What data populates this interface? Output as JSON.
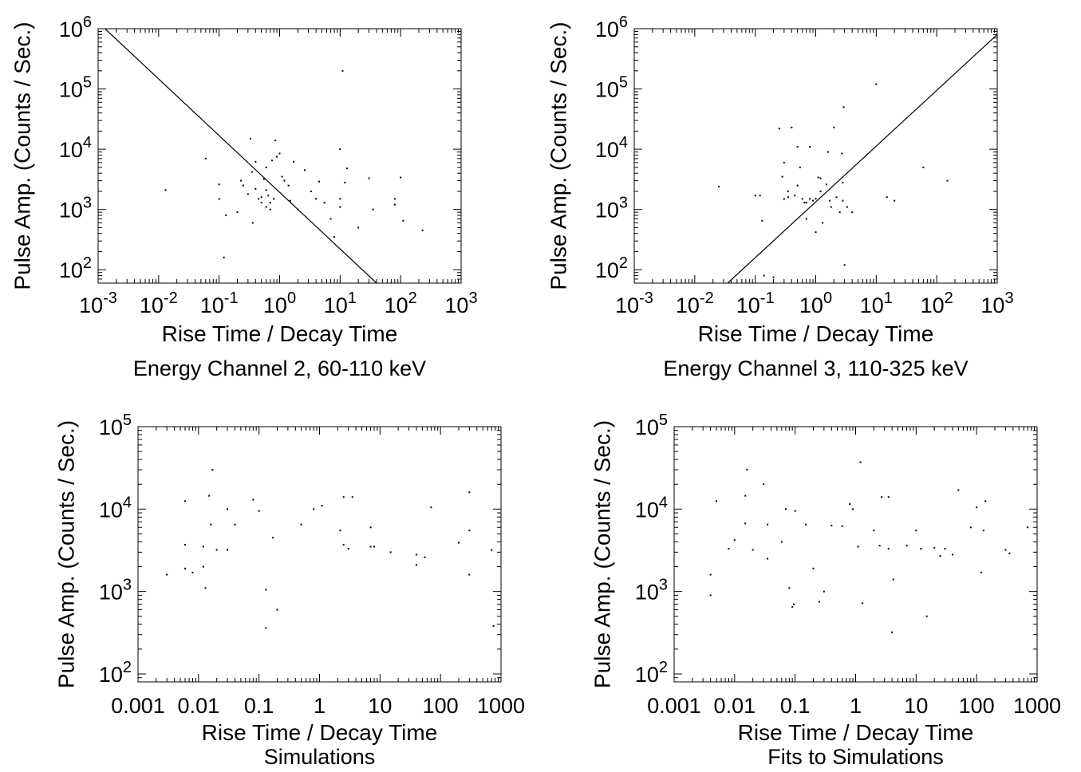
{
  "chart_data": [
    {
      "type": "scatter",
      "title": "Energy Channel 2, 60-110 keV",
      "xlabel": "Rise Time / Decay Time",
      "ylabel": "Pulse Amp. (Counts / Sec.)",
      "xscale": "log",
      "yscale": "log",
      "xlim": [
        0.001,
        1000
      ],
      "ylim": [
        60,
        1000000
      ],
      "tick_style": "power",
      "x_ticks": [
        {
          "v": 0.001,
          "b": "10",
          "e": "-3"
        },
        {
          "v": 0.01,
          "b": "10",
          "e": "-2"
        },
        {
          "v": 0.1,
          "b": "10",
          "e": "-1"
        },
        {
          "v": 1,
          "b": "10",
          "e": "0"
        },
        {
          "v": 10,
          "b": "10",
          "e": "1"
        },
        {
          "v": 100,
          "b": "10",
          "e": "2"
        },
        {
          "v": 1000,
          "b": "10",
          "e": "3"
        }
      ],
      "y_ticks": [
        {
          "v": 100,
          "b": "10",
          "e": "2"
        },
        {
          "v": 1000,
          "b": "10",
          "e": "3"
        },
        {
          "v": 10000,
          "b": "10",
          "e": "4"
        },
        {
          "v": 100000,
          "b": "10",
          "e": "5"
        },
        {
          "v": 1000000,
          "b": "10",
          "e": "6"
        }
      ],
      "fit_line": [
        [
          0.0013,
          1000000
        ],
        [
          40,
          60
        ]
      ],
      "points": [
        [
          0.013,
          2100
        ],
        [
          0.06,
          7000
        ],
        [
          0.1,
          2600
        ],
        [
          0.1,
          1500
        ],
        [
          0.12,
          160
        ],
        [
          0.13,
          800
        ],
        [
          0.2,
          900
        ],
        [
          0.23,
          3000
        ],
        [
          0.25,
          2500
        ],
        [
          0.3,
          1800
        ],
        [
          0.33,
          15000
        ],
        [
          0.35,
          4200
        ],
        [
          0.36,
          600
        ],
        [
          0.4,
          6200
        ],
        [
          0.4,
          2200
        ],
        [
          0.45,
          1500
        ],
        [
          0.5,
          1600
        ],
        [
          0.5,
          1300
        ],
        [
          0.55,
          3200
        ],
        [
          0.6,
          5000
        ],
        [
          0.6,
          2100
        ],
        [
          0.6,
          1100
        ],
        [
          0.65,
          1700
        ],
        [
          0.7,
          1300
        ],
        [
          0.7,
          1000
        ],
        [
          0.75,
          6500
        ],
        [
          0.8,
          1500
        ],
        [
          0.85,
          14000
        ],
        [
          0.9,
          7500
        ],
        [
          1.0,
          8500
        ],
        [
          1.1,
          3500
        ],
        [
          1.2,
          3000
        ],
        [
          1.4,
          2500
        ],
        [
          1.5,
          1400
        ],
        [
          1.7,
          6200
        ],
        [
          2.0,
          1000
        ],
        [
          2.6,
          4500
        ],
        [
          3.3,
          2000
        ],
        [
          4,
          1500
        ],
        [
          4.5,
          2900
        ],
        [
          5.5,
          1300
        ],
        [
          7,
          700
        ],
        [
          8,
          350
        ],
        [
          10,
          1500
        ],
        [
          10,
          1100
        ],
        [
          10,
          10000
        ],
        [
          11,
          200000
        ],
        [
          12,
          2800
        ],
        [
          13,
          4800
        ],
        [
          20,
          500
        ],
        [
          30,
          3300
        ],
        [
          35,
          1000
        ],
        [
          80,
          1500
        ],
        [
          80,
          1200
        ],
        [
          100,
          3400
        ],
        [
          110,
          650
        ],
        [
          230,
          450
        ]
      ]
    },
    {
      "type": "scatter",
      "title": "Energy Channel 3, 110-325 keV",
      "xlabel": "Rise Time / Decay Time",
      "ylabel": "Pulse Amp. (Counts / Sec.)",
      "xscale": "log",
      "yscale": "log",
      "xlim": [
        0.001,
        1000
      ],
      "ylim": [
        60,
        1000000
      ],
      "tick_style": "power",
      "x_ticks": [
        {
          "v": 0.001,
          "b": "10",
          "e": "-3"
        },
        {
          "v": 0.01,
          "b": "10",
          "e": "-2"
        },
        {
          "v": 0.1,
          "b": "10",
          "e": "-1"
        },
        {
          "v": 1,
          "b": "10",
          "e": "0"
        },
        {
          "v": 10,
          "b": "10",
          "e": "1"
        },
        {
          "v": 100,
          "b": "10",
          "e": "2"
        },
        {
          "v": 1000,
          "b": "10",
          "e": "3"
        }
      ],
      "y_ticks": [
        {
          "v": 100,
          "b": "10",
          "e": "2"
        },
        {
          "v": 1000,
          "b": "10",
          "e": "3"
        },
        {
          "v": 10000,
          "b": "10",
          "e": "4"
        },
        {
          "v": 100000,
          "b": "10",
          "e": "5"
        },
        {
          "v": 1000000,
          "b": "10",
          "e": "6"
        }
      ],
      "fit_line": [
        [
          0.035,
          60
        ],
        [
          1000,
          800000
        ]
      ],
      "points": [
        [
          0.025,
          2400
        ],
        [
          0.1,
          1700
        ],
        [
          0.12,
          1700
        ],
        [
          0.13,
          650
        ],
        [
          0.14,
          80
        ],
        [
          0.2,
          75
        ],
        [
          0.25,
          22000
        ],
        [
          0.28,
          3500
        ],
        [
          0.3,
          6000
        ],
        [
          0.3,
          1500
        ],
        [
          0.35,
          2000
        ],
        [
          0.35,
          1600
        ],
        [
          0.4,
          23000
        ],
        [
          0.45,
          1700
        ],
        [
          0.5,
          11000
        ],
        [
          0.5,
          2500
        ],
        [
          0.55,
          5000
        ],
        [
          0.6,
          1500
        ],
        [
          0.65,
          1300
        ],
        [
          0.7,
          1300
        ],
        [
          0.7,
          700
        ],
        [
          0.8,
          11000
        ],
        [
          0.8,
          1500
        ],
        [
          0.9,
          1400
        ],
        [
          1.0,
          1500
        ],
        [
          1.0,
          420
        ],
        [
          1.1,
          3400
        ],
        [
          1.2,
          3300
        ],
        [
          1.2,
          2000
        ],
        [
          1.3,
          600
        ],
        [
          1.5,
          2600
        ],
        [
          1.6,
          9000
        ],
        [
          1.7,
          1400
        ],
        [
          1.8,
          1100
        ],
        [
          2.0,
          23000
        ],
        [
          2.2,
          1600
        ],
        [
          2.5,
          900
        ],
        [
          2.7,
          8500
        ],
        [
          2.8,
          1400
        ],
        [
          2.8,
          2800
        ],
        [
          2.9,
          50000
        ],
        [
          3.0,
          120
        ],
        [
          3.3,
          1100
        ],
        [
          4,
          900
        ],
        [
          10,
          120000
        ],
        [
          15,
          1600
        ],
        [
          20,
          1400
        ],
        [
          60,
          5000
        ],
        [
          150,
          3000
        ]
      ]
    },
    {
      "type": "scatter",
      "title": "Simulations",
      "xlabel": "Rise Time / Decay Time",
      "ylabel": "Pulse Amp. (Counts / Sec.)",
      "xscale": "log",
      "yscale": "log",
      "xlim": [
        0.001,
        1000
      ],
      "ylim": [
        80,
        100000
      ],
      "tick_style": "plain",
      "x_ticks": [
        {
          "v": 0.001,
          "t": "0.001"
        },
        {
          "v": 0.01,
          "t": "0.01"
        },
        {
          "v": 0.1,
          "t": "0.1"
        },
        {
          "v": 1,
          "t": "1"
        },
        {
          "v": 10,
          "t": "10"
        },
        {
          "v": 100,
          "t": "100"
        },
        {
          "v": 1000,
          "t": "1000"
        }
      ],
      "y_ticks": [
        {
          "v": 100,
          "b": "10",
          "e": "2"
        },
        {
          "v": 1000,
          "b": "10",
          "e": "3"
        },
        {
          "v": 10000,
          "b": "10",
          "e": "4"
        },
        {
          "v": 100000,
          "b": "10",
          "e": "5"
        }
      ],
      "fit_line": null,
      "points": [
        [
          0.003,
          1600
        ],
        [
          0.006,
          12500
        ],
        [
          0.006,
          3700
        ],
        [
          0.006,
          1900
        ],
        [
          0.008,
          1700
        ],
        [
          0.012,
          3500
        ],
        [
          0.012,
          2000
        ],
        [
          0.013,
          1100
        ],
        [
          0.015,
          14500
        ],
        [
          0.016,
          6500
        ],
        [
          0.017,
          30000
        ],
        [
          0.02,
          3200
        ],
        [
          0.03,
          10000
        ],
        [
          0.03,
          3200
        ],
        [
          0.04,
          6500
        ],
        [
          0.08,
          13000
        ],
        [
          0.1,
          9500
        ],
        [
          0.13,
          1050
        ],
        [
          0.13,
          360
        ],
        [
          0.17,
          4500
        ],
        [
          0.2,
          600
        ],
        [
          0.5,
          6500
        ],
        [
          0.8,
          10000
        ],
        [
          1.1,
          11000
        ],
        [
          2.2,
          5500
        ],
        [
          2.5,
          14000
        ],
        [
          2.5,
          3700
        ],
        [
          3,
          3300
        ],
        [
          3.5,
          14000
        ],
        [
          7,
          6000
        ],
        [
          7,
          3500
        ],
        [
          8,
          3500
        ],
        [
          15,
          3000
        ],
        [
          40,
          2800
        ],
        [
          40,
          2100
        ],
        [
          55,
          2600
        ],
        [
          70,
          10500
        ],
        [
          200,
          3900
        ],
        [
          300,
          16000
        ],
        [
          300,
          5500
        ],
        [
          300,
          1600
        ],
        [
          700,
          3200
        ],
        [
          750,
          380
        ]
      ]
    },
    {
      "type": "scatter",
      "title": "Fits to Simulations",
      "xlabel": "Rise Time / Decay Time",
      "ylabel": "Pulse Amp. (Counts / Sec.)",
      "xscale": "log",
      "yscale": "log",
      "xlim": [
        0.001,
        1000
      ],
      "ylim": [
        80,
        100000
      ],
      "tick_style": "plain",
      "x_ticks": [
        {
          "v": 0.001,
          "t": "0.001"
        },
        {
          "v": 0.01,
          "t": "0.01"
        },
        {
          "v": 0.1,
          "t": "0.1"
        },
        {
          "v": 1,
          "t": "1"
        },
        {
          "v": 10,
          "t": "10"
        },
        {
          "v": 100,
          "t": "100"
        },
        {
          "v": 1000,
          "t": "1000"
        }
      ],
      "y_ticks": [
        {
          "v": 100,
          "b": "10",
          "e": "2"
        },
        {
          "v": 1000,
          "b": "10",
          "e": "3"
        },
        {
          "v": 10000,
          "b": "10",
          "e": "4"
        },
        {
          "v": 100000,
          "b": "10",
          "e": "5"
        }
      ],
      "fit_line": null,
      "points": [
        [
          0.004,
          1600
        ],
        [
          0.004,
          900
        ],
        [
          0.005,
          12500
        ],
        [
          0.008,
          3300
        ],
        [
          0.01,
          4200
        ],
        [
          0.015,
          14500
        ],
        [
          0.015,
          6700
        ],
        [
          0.016,
          30000
        ],
        [
          0.02,
          3200
        ],
        [
          0.03,
          20000
        ],
        [
          0.035,
          6500
        ],
        [
          0.035,
          2500
        ],
        [
          0.06,
          4000
        ],
        [
          0.07,
          10000
        ],
        [
          0.08,
          1100
        ],
        [
          0.09,
          650
        ],
        [
          0.095,
          700
        ],
        [
          0.1,
          9500
        ],
        [
          0.15,
          6500
        ],
        [
          0.2,
          1900
        ],
        [
          0.25,
          750
        ],
        [
          0.3,
          1000
        ],
        [
          0.4,
          6300
        ],
        [
          0.6,
          6200
        ],
        [
          0.8,
          11500
        ],
        [
          0.9,
          10000
        ],
        [
          1.1,
          3500
        ],
        [
          1.2,
          37000
        ],
        [
          1.3,
          720
        ],
        [
          2,
          5500
        ],
        [
          2.5,
          3600
        ],
        [
          2.7,
          14000
        ],
        [
          3.5,
          3300
        ],
        [
          3.5,
          14000
        ],
        [
          4,
          320
        ],
        [
          4.2,
          1400
        ],
        [
          7,
          3600
        ],
        [
          10,
          5500
        ],
        [
          12,
          3300
        ],
        [
          15,
          500
        ],
        [
          20,
          3400
        ],
        [
          25,
          2700
        ],
        [
          30,
          3300
        ],
        [
          40,
          2800
        ],
        [
          50,
          17000
        ],
        [
          80,
          6000
        ],
        [
          100,
          10500
        ],
        [
          120,
          1700
        ],
        [
          130,
          5500
        ],
        [
          140,
          12500
        ],
        [
          300,
          3200
        ],
        [
          350,
          2900
        ],
        [
          700,
          6000
        ]
      ]
    }
  ]
}
